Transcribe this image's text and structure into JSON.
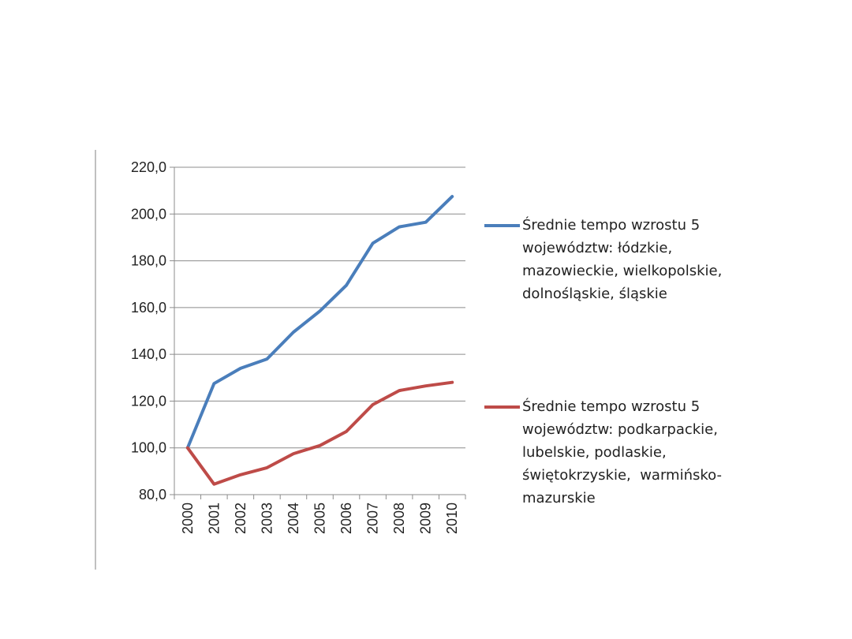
{
  "chart_data": {
    "type": "line",
    "title": "",
    "xlabel": "",
    "ylabel": "",
    "categories": [
      "2000",
      "2001",
      "2002",
      "2003",
      "2004",
      "2005",
      "2006",
      "2007",
      "2008",
      "2009",
      "2010"
    ],
    "ylim": [
      80,
      220
    ],
    "yticks": [
      "80,0",
      "100,0",
      "120,0",
      "140,0",
      "160,0",
      "180,0",
      "200,0",
      "220,0"
    ],
    "grid": true,
    "legend_position": "right",
    "series": [
      {
        "name": "Średnie tempo wzrostu 5 województw: łódzkie, mazowieckie, wielkopolskie, dolnośląskie, śląskie",
        "name_lines": [
          "Średnie tempo wzrostu 5",
          "województw: łódzkie,",
          "mazowieckie, wielkopolskie,",
          "dolnośląskie, śląskie"
        ],
        "color": "#4A7EBB",
        "values": [
          100.0,
          127.5,
          134.0,
          138.0,
          149.5,
          158.5,
          169.5,
          187.5,
          194.5,
          196.5,
          207.5
        ]
      },
      {
        "name": "Średnie tempo wzrostu 5 województw: podkarpackie, lubelskie, podlaskie, świętokrzyskie, warmińsko-mazurskie",
        "name_lines": [
          "Średnie tempo wzrostu 5",
          "województw: podkarpackie,",
          "lubelskie, podlaskie,",
          "świętokrzyskie,  warmińsko-",
          "mazurskie"
        ],
        "color": "#BE4B48",
        "values": [
          100.0,
          84.5,
          88.5,
          91.5,
          97.5,
          101.0,
          107.0,
          118.5,
          124.5,
          126.5,
          128.0
        ]
      }
    ]
  }
}
